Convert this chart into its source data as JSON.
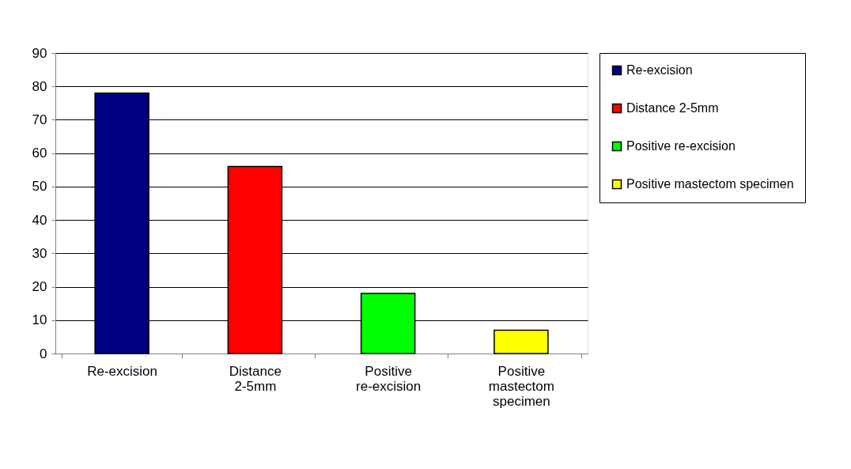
{
  "chart_data": {
    "type": "bar",
    "categories": [
      "Re-excision",
      "Distance 2-5mm",
      "Positive re-excision",
      "Positive mastectom specimen"
    ],
    "series": [
      {
        "name": "Re-excision",
        "color": "#000080",
        "values": [
          78,
          null,
          null,
          null
        ]
      },
      {
        "name": "Distance 2-5mm",
        "color": "#ff0000",
        "values": [
          null,
          56,
          null,
          null
        ]
      },
      {
        "name": "Positive re-excision",
        "color": "#00ff00",
        "values": [
          null,
          null,
          18,
          null
        ]
      },
      {
        "name": "Positive mastectom specimen",
        "color": "#ffff00",
        "values": [
          null,
          null,
          null,
          7
        ]
      }
    ],
    "ylim": [
      0,
      90
    ],
    "yticks": [
      0,
      10,
      20,
      30,
      40,
      50,
      60,
      70,
      80,
      90
    ],
    "grid": "y",
    "legend": "right"
  }
}
